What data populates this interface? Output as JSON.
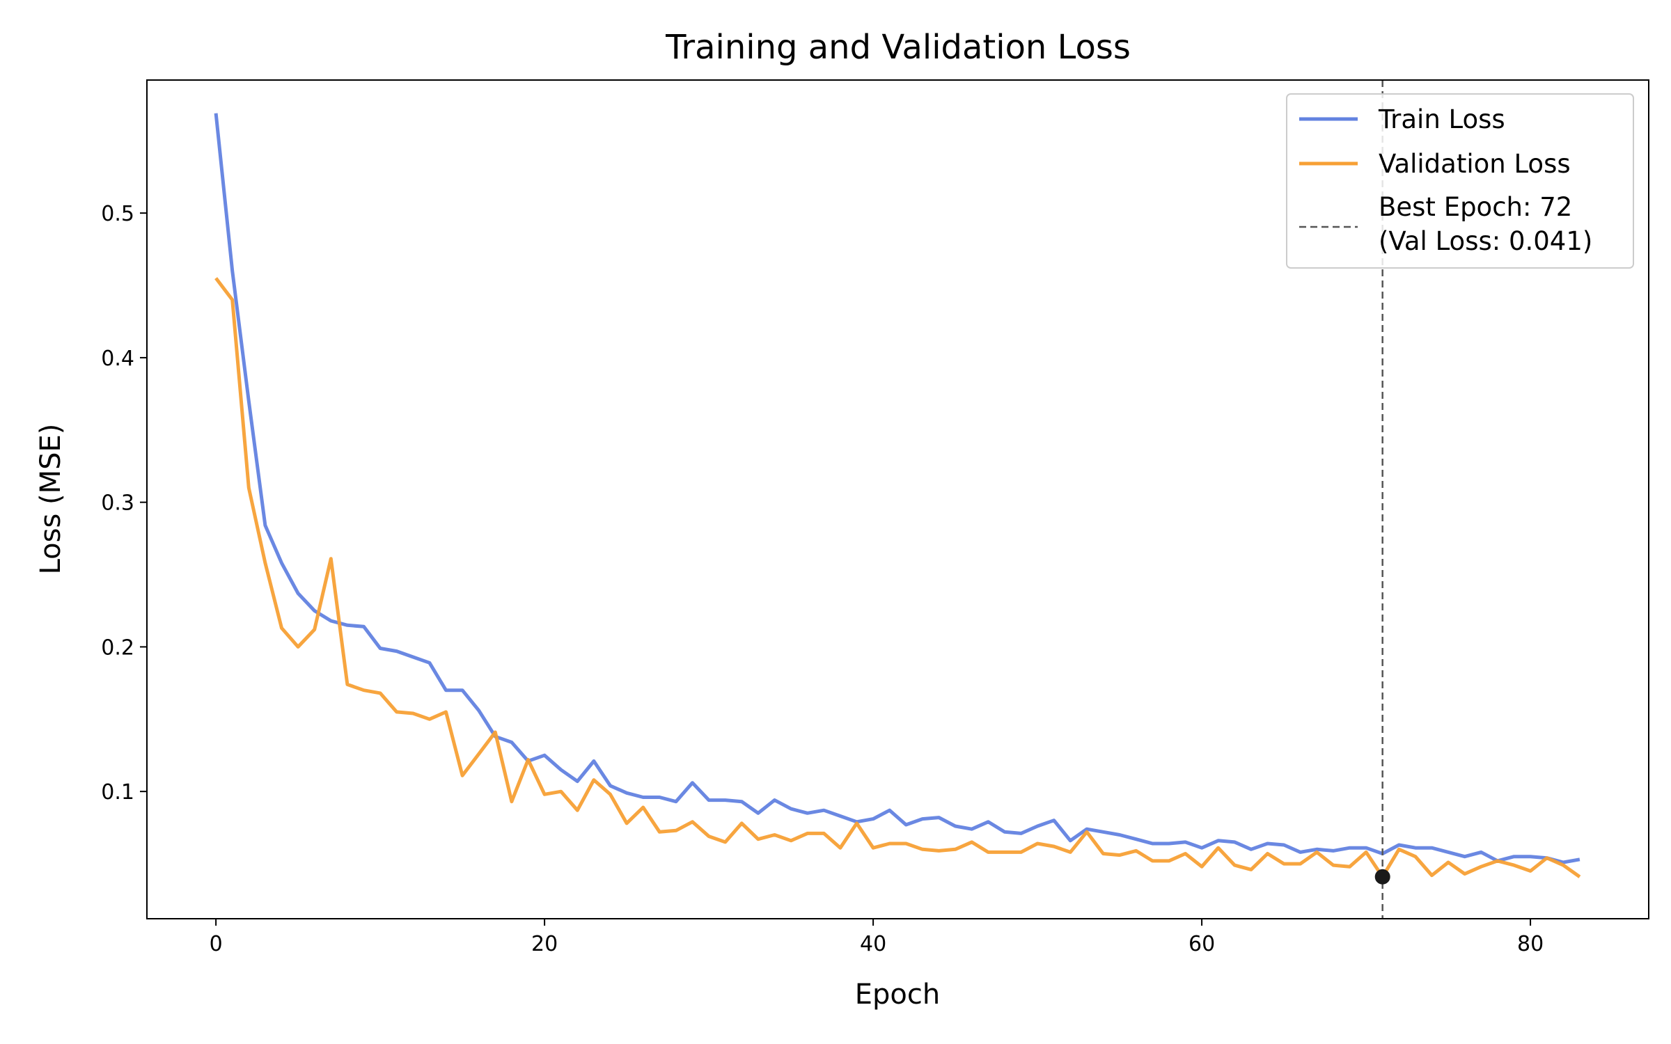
{
  "chart_data": {
    "type": "line",
    "title": "Training and Validation Loss",
    "xlabel": "Epoch",
    "ylabel": "Loss (MSE)",
    "xlim": [
      -4.2,
      87.2
    ],
    "ylim": [
      0.012,
      0.592
    ],
    "x_ticks": [
      0,
      20,
      40,
      60,
      80
    ],
    "y_ticks": [
      0.1,
      0.2,
      0.3,
      0.4,
      0.5
    ],
    "x_tick_labels": [
      "0",
      "20",
      "40",
      "60",
      "80"
    ],
    "y_tick_labels": [
      "0.1",
      "0.2",
      "0.3",
      "0.4",
      "0.5"
    ],
    "grid": false,
    "legend_position": "top-right",
    "series": [
      {
        "name": "Train Loss",
        "color": "#6282e0",
        "values": [
          0.569,
          0.46,
          0.37,
          0.284,
          0.258,
          0.237,
          0.225,
          0.218,
          0.215,
          0.214,
          0.199,
          0.197,
          0.193,
          0.189,
          0.17,
          0.17,
          0.156,
          0.138,
          0.134,
          0.121,
          0.125,
          0.115,
          0.107,
          0.121,
          0.104,
          0.099,
          0.096,
          0.096,
          0.093,
          0.106,
          0.094,
          0.094,
          0.093,
          0.085,
          0.094,
          0.088,
          0.085,
          0.087,
          0.083,
          0.079,
          0.081,
          0.087,
          0.077,
          0.081,
          0.082,
          0.076,
          0.074,
          0.079,
          0.072,
          0.071,
          0.076,
          0.08,
          0.066,
          0.074,
          0.072,
          0.07,
          0.067,
          0.064,
          0.064,
          0.065,
          0.061,
          0.066,
          0.065,
          0.06,
          0.064,
          0.063,
          0.058,
          0.06,
          0.059,
          0.061,
          0.061,
          0.057,
          0.063,
          0.061,
          0.061,
          0.058,
          0.055,
          0.058,
          0.052,
          0.055,
          0.055,
          0.054,
          0.051,
          0.053
        ]
      },
      {
        "name": "Validation Loss",
        "color": "#f7a035",
        "values": [
          0.455,
          0.44,
          0.31,
          0.258,
          0.213,
          0.2,
          0.212,
          0.261,
          0.174,
          0.17,
          0.168,
          0.155,
          0.154,
          0.15,
          0.155,
          0.111,
          0.126,
          0.141,
          0.093,
          0.122,
          0.098,
          0.1,
          0.087,
          0.108,
          0.098,
          0.078,
          0.089,
          0.072,
          0.073,
          0.079,
          0.069,
          0.065,
          0.078,
          0.067,
          0.07,
          0.066,
          0.071,
          0.071,
          0.061,
          0.078,
          0.061,
          0.064,
          0.064,
          0.06,
          0.059,
          0.06,
          0.065,
          0.058,
          0.058,
          0.058,
          0.064,
          0.062,
          0.058,
          0.072,
          0.057,
          0.056,
          0.059,
          0.052,
          0.052,
          0.057,
          0.048,
          0.061,
          0.049,
          0.046,
          0.057,
          0.05,
          0.05,
          0.058,
          0.049,
          0.048,
          0.058,
          0.041,
          0.06,
          0.055,
          0.042,
          0.051,
          0.043,
          0.048,
          0.052,
          0.049,
          0.045,
          0.054,
          0.049,
          0.041
        ]
      }
    ],
    "best_epoch": {
      "x": 71,
      "val_loss": 0.041,
      "label_line1": "Best Epoch: 72",
      "label_line2": "(Val Loss: 0.041)",
      "line_color": "#555555",
      "marker_color": "#1a1a1a"
    }
  }
}
